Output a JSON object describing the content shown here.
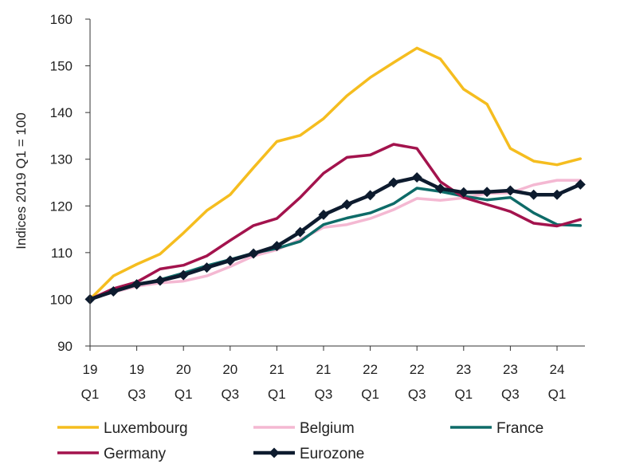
{
  "chart_data": {
    "type": "line",
    "ylabel": "Indices 2019 Q1 = 100",
    "ylim": [
      90,
      160
    ],
    "yticks": [
      90,
      100,
      110,
      120,
      130,
      140,
      150,
      160
    ],
    "grid": false,
    "legend_position": "bottom",
    "x": [
      "2019 Q1",
      "2019 Q2",
      "2019 Q3",
      "2019 Q4",
      "2020 Q1",
      "2020 Q2",
      "2020 Q3",
      "2020 Q4",
      "2021 Q1",
      "2021 Q2",
      "2021 Q3",
      "2021 Q4",
      "2022 Q1",
      "2022 Q2",
      "2022 Q3",
      "2022 Q4",
      "2023 Q1",
      "2023 Q2",
      "2023 Q3",
      "2023 Q4",
      "2024 Q1",
      "2024 Q2"
    ],
    "xticks": [
      {
        "index": 0,
        "year": "19",
        "quarter": "Q1"
      },
      {
        "index": 2,
        "year": "19",
        "quarter": "Q3"
      },
      {
        "index": 4,
        "year": "20",
        "quarter": "Q1"
      },
      {
        "index": 6,
        "year": "20",
        "quarter": "Q3"
      },
      {
        "index": 8,
        "year": "21",
        "quarter": "Q1"
      },
      {
        "index": 10,
        "year": "21",
        "quarter": "Q3"
      },
      {
        "index": 12,
        "year": "22",
        "quarter": "Q1"
      },
      {
        "index": 14,
        "year": "22",
        "quarter": "Q3"
      },
      {
        "index": 16,
        "year": "23",
        "quarter": "Q1"
      },
      {
        "index": 18,
        "year": "23",
        "quarter": "Q3"
      },
      {
        "index": 20,
        "year": "24",
        "quarter": "Q1"
      }
    ],
    "series": [
      {
        "name": "Luxembourg",
        "color": "#f5bd1f",
        "marker": "none",
        "values": [
          100,
          105,
          107.5,
          109.7,
          114.2,
          119,
          122.4,
          128.2,
          133.8,
          135.1,
          138.7,
          143.6,
          147.5,
          150.7,
          153.8,
          151.5,
          145,
          141.8,
          132.3,
          129.6,
          128.8,
          130.1
        ]
      },
      {
        "name": "Belgium",
        "color": "#f4b8d2",
        "marker": "none",
        "values": [
          100,
          101.5,
          102.8,
          103.5,
          103.9,
          105,
          107,
          109.3,
          110.6,
          112.8,
          115.4,
          116,
          117.3,
          119.2,
          121.6,
          121.2,
          121.7,
          122.7,
          122.8,
          124.5,
          125.5,
          125.5
        ]
      },
      {
        "name": "France",
        "color": "#0e6b68",
        "marker": "none",
        "values": [
          100,
          101.6,
          103.1,
          104.2,
          105.6,
          107.2,
          108.5,
          109.9,
          110.9,
          112.4,
          116,
          117.4,
          118.5,
          120.5,
          123.8,
          123.1,
          122.1,
          121.3,
          121.8,
          118.5,
          116,
          115.8
        ]
      },
      {
        "name": "Germany",
        "color": "#a3134d",
        "marker": "none",
        "values": [
          100,
          102.3,
          103.7,
          106.5,
          107.3,
          109.3,
          112.6,
          115.8,
          117.3,
          121.8,
          127,
          130.4,
          130.9,
          133.2,
          132.3,
          125.2,
          121.8,
          120.3,
          118.8,
          116.3,
          115.7,
          117.1
        ]
      },
      {
        "name": "Eurozone",
        "color": "#0d1b2e",
        "marker": "diamond",
        "values": [
          100,
          101.7,
          103.2,
          104,
          105.2,
          106.8,
          108.3,
          109.8,
          111.4,
          114.4,
          118.1,
          120.3,
          122.3,
          125,
          126.1,
          123.7,
          122.9,
          123,
          123.3,
          122.4,
          122.4,
          124.6
        ]
      }
    ]
  }
}
